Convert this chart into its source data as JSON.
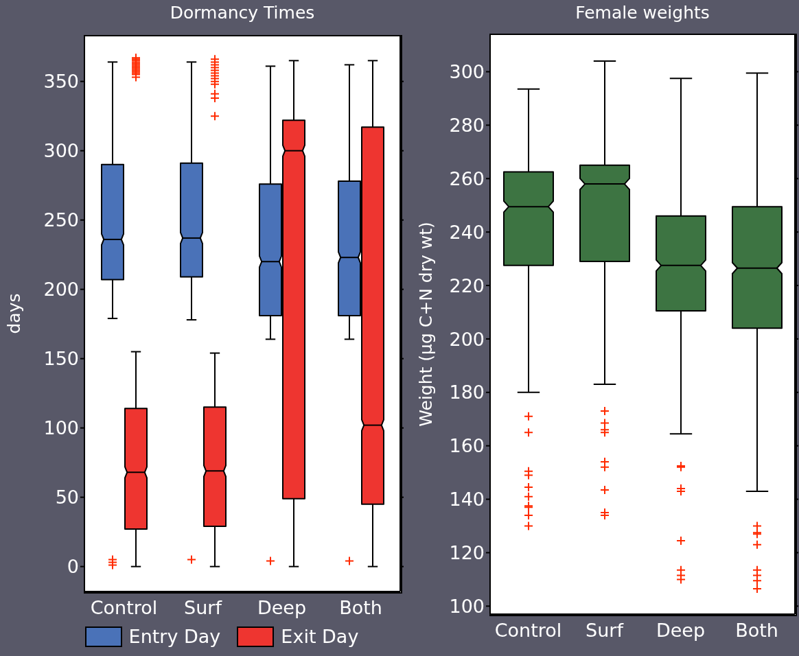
{
  "chart_data": [
    {
      "type": "box",
      "title": "Dormancy Times",
      "ylabel": "days",
      "categories": [
        "Control",
        "Surf",
        "Deep",
        "Both"
      ],
      "ylim": [
        -18,
        383
      ],
      "yticks": [
        0,
        50,
        100,
        150,
        200,
        250,
        300,
        350
      ],
      "legend": "bottom",
      "series": [
        {
          "name": "Entry Day",
          "color": "#4a72b8",
          "boxes": [
            {
              "low": 179,
              "q1": 207,
              "median": 236,
              "q3": 290,
              "high": 364,
              "outliers": [
                5,
                3,
                1
              ]
            },
            {
              "low": 178,
              "q1": 209,
              "median": 237,
              "q3": 291,
              "high": 364,
              "outliers": [
                5
              ]
            },
            {
              "low": 164,
              "q1": 181,
              "median": 220,
              "q3": 276,
              "high": 361,
              "outliers": [
                4
              ]
            },
            {
              "low": 164,
              "q1": 181,
              "median": 223,
              "q3": 278,
              "high": 362,
              "outliers": [
                4
              ]
            }
          ]
        },
        {
          "name": "Exit Day",
          "color": "#ee3530",
          "boxes": [
            {
              "low": 0,
              "q1": 27,
              "median": 68,
              "q3": 114,
              "high": 155,
              "outliers": [
                367,
                366,
                365,
                364,
                363,
                362,
                361,
                360,
                359,
                358,
                357,
                356,
                355,
                353
              ]
            },
            {
              "low": 0,
              "q1": 29,
              "median": 69,
              "q3": 115,
              "high": 154,
              "outliers": [
                366,
                364,
                362,
                360,
                358,
                356,
                354,
                352,
                350,
                348,
                341,
                338,
                325
              ]
            },
            {
              "low": 0,
              "q1": 49,
              "median": 300,
              "q3": 322,
              "high": 365
            },
            {
              "low": 0,
              "q1": 45,
              "median": 102,
              "q3": 317,
              "high": 365
            }
          ]
        }
      ]
    },
    {
      "type": "box",
      "title": "Female weights",
      "ylabel": "Weight (µg C+N dry wt)",
      "categories": [
        "Control",
        "Surf",
        "Deep",
        "Both"
      ],
      "ylim": [
        97,
        314
      ],
      "yticks": [
        100,
        120,
        140,
        160,
        180,
        200,
        220,
        240,
        260,
        280,
        300
      ],
      "color": "#3d7442",
      "boxes": [
        {
          "low": 180,
          "q1": 227.5,
          "median": 249.5,
          "q3": 262.5,
          "high": 293.5,
          "outliers": [
            171,
            165,
            150.5,
            149,
            144.5,
            141,
            137.5,
            137,
            134,
            130
          ]
        },
        {
          "low": 183,
          "q1": 229,
          "median": 258,
          "q3": 265,
          "high": 304,
          "outliers": [
            173,
            168.5,
            166,
            165,
            154,
            152,
            143.5,
            135,
            134
          ]
        },
        {
          "low": 164.5,
          "q1": 210.5,
          "median": 227.5,
          "q3": 246,
          "high": 297.5,
          "outliers": [
            152.5,
            152,
            144,
            143,
            124.5,
            113.5,
            111.5,
            110
          ]
        },
        {
          "low": 143,
          "q1": 204,
          "median": 226.5,
          "q3": 249.5,
          "high": 299.5,
          "outliers": [
            130,
            127.5,
            127,
            123,
            113.5,
            111.5,
            109.5,
            106.5
          ]
        }
      ]
    }
  ]
}
